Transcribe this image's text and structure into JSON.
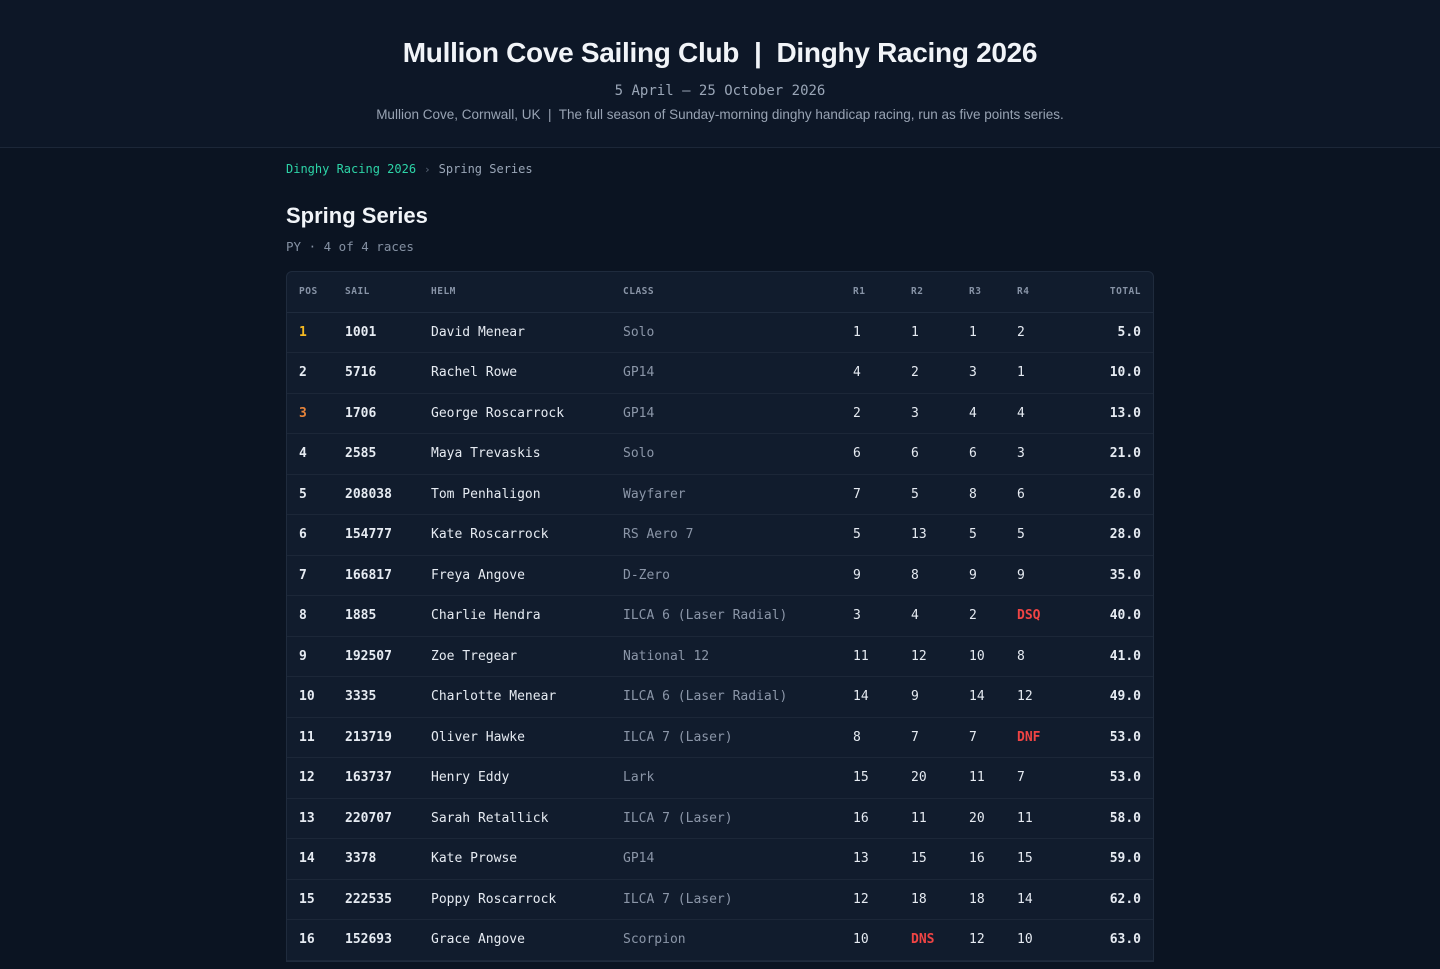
{
  "header": {
    "title": "Mullion Cove Sailing Club  |  Dinghy Racing 2026",
    "dates": "5 April — 25 October 2026",
    "description": "Mullion Cove, Cornwall, UK  |  The full season of Sunday-morning dinghy handicap racing, run as five points series."
  },
  "breadcrumb": {
    "parent": "Dinghy Racing 2026",
    "separator": "›",
    "current": "Spring Series"
  },
  "series": {
    "title": "Spring Series",
    "meta": "PY · 4 of 4 races"
  },
  "table": {
    "columns": {
      "pos": "POS",
      "sail": "SAIL",
      "helm": "HELM",
      "class": "CLASS",
      "r1": "R1",
      "r2": "R2",
      "r3": "R3",
      "r4": "R4",
      "total": "TOTAL"
    },
    "rows": [
      {
        "pos": "1",
        "sail": "1001",
        "helm": "David Menear",
        "class": "Solo",
        "r1": "1",
        "r2": "1",
        "r3": "1",
        "r4": "2",
        "total": "5.0"
      },
      {
        "pos": "2",
        "sail": "5716",
        "helm": "Rachel Rowe",
        "class": "GP14",
        "r1": "4",
        "r2": "2",
        "r3": "3",
        "r4": "1",
        "total": "10.0"
      },
      {
        "pos": "3",
        "sail": "1706",
        "helm": "George Roscarrock",
        "class": "GP14",
        "r1": "2",
        "r2": "3",
        "r3": "4",
        "r4": "4",
        "total": "13.0"
      },
      {
        "pos": "4",
        "sail": "2585",
        "helm": "Maya Trevaskis",
        "class": "Solo",
        "r1": "6",
        "r2": "6",
        "r3": "6",
        "r4": "3",
        "total": "21.0"
      },
      {
        "pos": "5",
        "sail": "208038",
        "helm": "Tom Penhaligon",
        "class": "Wayfarer",
        "r1": "7",
        "r2": "5",
        "r3": "8",
        "r4": "6",
        "total": "26.0"
      },
      {
        "pos": "6",
        "sail": "154777",
        "helm": "Kate Roscarrock",
        "class": "RS Aero 7",
        "r1": "5",
        "r2": "13",
        "r3": "5",
        "r4": "5",
        "total": "28.0"
      },
      {
        "pos": "7",
        "sail": "166817",
        "helm": "Freya Angove",
        "class": "D-Zero",
        "r1": "9",
        "r2": "8",
        "r3": "9",
        "r4": "9",
        "total": "35.0"
      },
      {
        "pos": "8",
        "sail": "1885",
        "helm": "Charlie Hendra",
        "class": "ILCA 6 (Laser Radial)",
        "r1": "3",
        "r2": "4",
        "r3": "2",
        "r4": "DSQ",
        "total": "40.0"
      },
      {
        "pos": "9",
        "sail": "192507",
        "helm": "Zoe Tregear",
        "class": "National 12",
        "r1": "11",
        "r2": "12",
        "r3": "10",
        "r4": "8",
        "total": "41.0"
      },
      {
        "pos": "10",
        "sail": "3335",
        "helm": "Charlotte Menear",
        "class": "ILCA 6 (Laser Radial)",
        "r1": "14",
        "r2": "9",
        "r3": "14",
        "r4": "12",
        "total": "49.0"
      },
      {
        "pos": "11",
        "sail": "213719",
        "helm": "Oliver Hawke",
        "class": "ILCA 7 (Laser)",
        "r1": "8",
        "r2": "7",
        "r3": "7",
        "r4": "DNF",
        "total": "53.0"
      },
      {
        "pos": "12",
        "sail": "163737",
        "helm": "Henry Eddy",
        "class": "Lark",
        "r1": "15",
        "r2": "20",
        "r3": "11",
        "r4": "7",
        "total": "53.0"
      },
      {
        "pos": "13",
        "sail": "220707",
        "helm": "Sarah Retallick",
        "class": "ILCA 7 (Laser)",
        "r1": "16",
        "r2": "11",
        "r3": "20",
        "r4": "11",
        "total": "58.0"
      },
      {
        "pos": "14",
        "sail": "3378",
        "helm": "Kate Prowse",
        "class": "GP14",
        "r1": "13",
        "r2": "15",
        "r3": "16",
        "r4": "15",
        "total": "59.0"
      },
      {
        "pos": "15",
        "sail": "222535",
        "helm": "Poppy Roscarrock",
        "class": "ILCA 7 (Laser)",
        "r1": "12",
        "r2": "18",
        "r3": "18",
        "r4": "14",
        "total": "62.0"
      },
      {
        "pos": "16",
        "sail": "152693",
        "helm": "Grace Angove",
        "class": "Scorpion",
        "r1": "10",
        "r2": "DNS",
        "r3": "12",
        "r4": "10",
        "total": "63.0"
      }
    ]
  },
  "colors": {
    "accent": "#2dd4a7",
    "gold": "#f5b921",
    "bronze": "#e8843a",
    "penalty": "#ef4444"
  }
}
